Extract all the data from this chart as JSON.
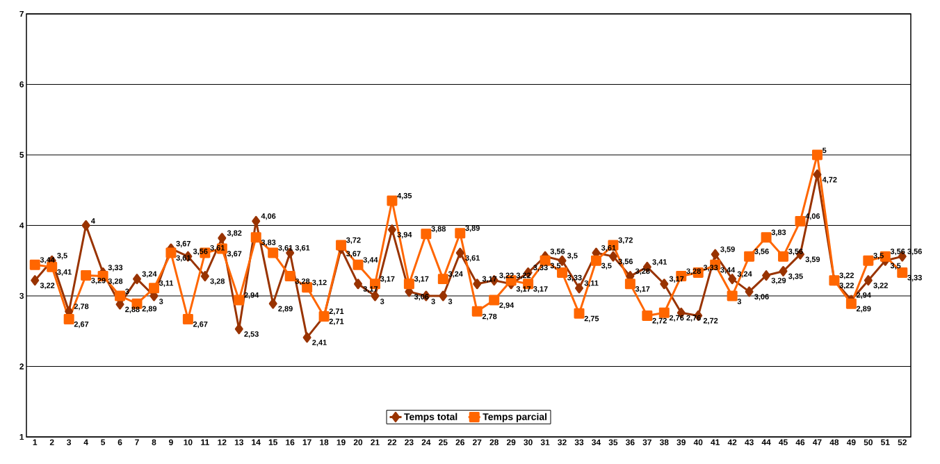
{
  "chart_data": {
    "type": "line",
    "categories": [
      "1",
      "2",
      "3",
      "4",
      "5",
      "6",
      "7",
      "8",
      "9",
      "10",
      "11",
      "12",
      "13",
      "14",
      "15",
      "16",
      "17",
      "18",
      "19",
      "20",
      "21",
      "22",
      "23",
      "24",
      "25",
      "26",
      "27",
      "28",
      "29",
      "30",
      "31",
      "32",
      "33",
      "34",
      "35",
      "36",
      "37",
      "38",
      "39",
      "40",
      "41",
      "42",
      "43",
      "44",
      "45",
      "46",
      "47",
      "48",
      "49",
      "50",
      "51",
      "52"
    ],
    "series": [
      {
        "name": "Temps total",
        "color": "#993300",
        "marker": "diamond",
        "values": [
          3.22,
          3.5,
          2.78,
          4,
          3.33,
          2.88,
          3.24,
          3,
          3.67,
          3.56,
          3.28,
          3.82,
          2.53,
          4.06,
          2.89,
          3.61,
          2.41,
          2.71,
          3.67,
          3.17,
          3,
          3.94,
          3.06,
          3,
          3,
          3.61,
          3.17,
          3.22,
          3.17,
          3.33,
          3.56,
          3.5,
          3.11,
          3.61,
          3.56,
          3.28,
          3.41,
          3.17,
          2.76,
          2.72,
          3.59,
          3.24,
          3.06,
          3.29,
          3.35,
          3.59,
          4.72,
          3.22,
          2.94,
          3.22,
          3.5,
          3.56
        ],
        "value_labels": [
          "3,22",
          "3,5",
          "2,78",
          "4",
          "3,33",
          "2,88",
          "3,24",
          "3",
          "3,67",
          "3,56",
          "3,28",
          "3,82",
          "2,53",
          "4,06",
          "2,89",
          "3,61",
          "2,41",
          "2,71",
          "3,67",
          "3,17",
          "3",
          "3,94",
          "3,06",
          "3",
          "3",
          "3,61",
          "3,17",
          "3,22",
          "3,17",
          "3,33",
          "3,56",
          "3,5",
          "3,11",
          "3,61",
          "3,56",
          "3,28",
          "3,41",
          "3,17",
          "2,76",
          "2,72",
          "3,59",
          "3,24",
          "3,06",
          "3,29",
          "3,35",
          "3,59",
          "4,72",
          "3,22",
          "2,94",
          "3,22",
          "3,5",
          "3,56"
        ]
      },
      {
        "name": "Temps parcial",
        "color": "#ff6600",
        "marker": "square",
        "values": [
          3.44,
          3.41,
          2.67,
          3.29,
          3.28,
          3,
          2.89,
          3.11,
          3.61,
          2.67,
          3.61,
          3.67,
          2.94,
          3.83,
          3.61,
          3.28,
          3.12,
          2.71,
          3.72,
          3.44,
          3.17,
          4.35,
          3.17,
          3.88,
          3.24,
          3.89,
          2.78,
          2.94,
          3.22,
          3.17,
          3.5,
          3.33,
          2.75,
          3.5,
          3.72,
          3.17,
          2.72,
          2.76,
          3.28,
          3.33,
          3.44,
          3,
          3.56,
          3.83,
          3.56,
          4.06,
          5,
          3.22,
          2.89,
          3.5,
          3.56,
          3.33
        ],
        "value_labels": [
          "3,44",
          "3,41",
          "2,67",
          "3,29",
          "3,28",
          "3",
          "2,89",
          "3,11",
          "3,61",
          "2,67",
          "3,61",
          "3,67",
          "2,94",
          "3,83",
          "3,61",
          "3,28",
          "3,12",
          "2,71",
          "3,72",
          "3,44",
          "3,17",
          "4,35",
          "3,17",
          "3,88",
          "3,24",
          "3,89",
          "2,78",
          "2,94",
          "3,22",
          "3,17",
          "3,5",
          "3,33",
          "2,75",
          "3,5",
          "3,72",
          "3,17",
          "2,72",
          "2,76",
          "3,28",
          "3,33",
          "3,44",
          "3",
          "3,56",
          "3,83",
          "3,56",
          "4,06",
          "5",
          "3,22",
          "2,89",
          "3,5",
          "3,56",
          "3,33"
        ]
      }
    ],
    "ylim": [
      1,
      7
    ],
    "yticks": [
      1,
      2,
      3,
      4,
      5,
      6,
      7
    ],
    "grid": "y",
    "legend": "bottom",
    "line_style": "solid"
  }
}
